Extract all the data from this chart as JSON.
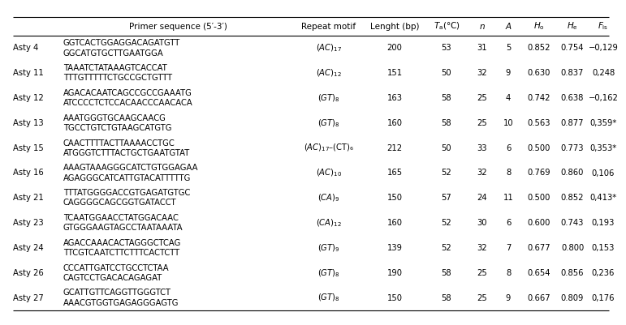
{
  "bg_color": "#ffffff",
  "font_size": 7.2,
  "header_font_size": 7.5,
  "rows": [
    {
      "locus": "Asty 4",
      "primer1": "GGTCACTGGAGGACAGATGTT",
      "primer2": "GGCATGTGCTTGAATGGA",
      "repeat": "(AC)",
      "repeat_sub": "17",
      "repeat_extra": "",
      "lenght": "200",
      "ta": "53",
      "n": "31",
      "a": "5",
      "ho": "0.852",
      "he": "0.754",
      "fis": "−0,129"
    },
    {
      "locus": "Asty 11",
      "primer1": "TAAATCTATAAAGTCACCAT",
      "primer2": "TTTGTTTTTCTGCCGCTGTTT",
      "repeat": "(AC)",
      "repeat_sub": "12",
      "repeat_extra": "",
      "lenght": "151",
      "ta": "50",
      "n": "32",
      "a": "9",
      "ho": "0.630",
      "he": "0.837",
      "fis": "0,248"
    },
    {
      "locus": "Asty 12",
      "primer1": "AGACACAATCAGCCGCCGAAATG",
      "primer2": "ATCCCCTCTCCACAACCCAACACA",
      "repeat": "(GT)",
      "repeat_sub": "8",
      "repeat_extra": "",
      "lenght": "163",
      "ta": "58",
      "n": "25",
      "a": "4",
      "ho": "0.742",
      "he": "0.638",
      "fis": "−0,162"
    },
    {
      "locus": "Asty 13",
      "primer1": "AAATGGGTGCAAGCAACG",
      "primer2": "TGCCTGTCTGTAAGCATGTG",
      "repeat": "(GT)",
      "repeat_sub": "8",
      "repeat_extra": "",
      "lenght": "160",
      "ta": "58",
      "n": "25",
      "a": "10",
      "ho": "0.563",
      "he": "0.877",
      "fis": "0,359*"
    },
    {
      "locus": "Asty 15",
      "primer1": "CAACTTTTACTTAAAACCTGC",
      "primer2": "ATGGGTCTTTACTGCTGAATGTAT",
      "repeat": "(AC)",
      "repeat_sub": "17",
      "repeat_extra": "–(CT)₆",
      "lenght": "212",
      "ta": "50",
      "n": "33",
      "a": "6",
      "ho": "0.500",
      "he": "0.773",
      "fis": "0,353*"
    },
    {
      "locus": "Asty 16",
      "primer1": "AAAGTAAAGGGCATCTGTGGAGAA",
      "primer2": "AGAGGGCATCATTGTACATTTTTG",
      "repeat": "(AC)",
      "repeat_sub": "10",
      "repeat_extra": "",
      "lenght": "165",
      "ta": "52",
      "n": "32",
      "a": "8",
      "ho": "0.769",
      "he": "0.860",
      "fis": "0,106"
    },
    {
      "locus": "Asty 21",
      "primer1": "TTTATGGGGACCGTGAGATGTGC",
      "primer2": "CAGGGGCAGCGGTGATACCT",
      "repeat": "(CA)",
      "repeat_sub": "9",
      "repeat_extra": "",
      "lenght": "150",
      "ta": "57",
      "n": "24",
      "a": "11",
      "ho": "0.500",
      "he": "0.852",
      "fis": "0,413*"
    },
    {
      "locus": "Asty 23",
      "primer1": "TCAATGGAACCTATGGACAAC",
      "primer2": "GTGGGAAGTAGCCTAATAAATA",
      "repeat": "(CA)",
      "repeat_sub": "12",
      "repeat_extra": "",
      "lenght": "160",
      "ta": "52",
      "n": "30",
      "a": "6",
      "ho": "0.600",
      "he": "0.743",
      "fis": "0,193"
    },
    {
      "locus": "Asty 24",
      "primer1": "AGACCAAACACTAGGGCTCAG",
      "primer2": "TTCGTCAATCTTCTTTCACTCTT",
      "repeat": "(GT)",
      "repeat_sub": "9",
      "repeat_extra": "",
      "lenght": "139",
      "ta": "52",
      "n": "32",
      "a": "7",
      "ho": "0.677",
      "he": "0.800",
      "fis": "0,153"
    },
    {
      "locus": "Asty 26",
      "primer1": "CCCATTGATCCTGCCTCTAA",
      "primer2": "CAGTCCTGACACAGAGAT",
      "repeat": "(GT)",
      "repeat_sub": "8",
      "repeat_extra": "",
      "lenght": "190",
      "ta": "58",
      "n": "25",
      "a": "8",
      "ho": "0.654",
      "he": "0.856",
      "fis": "0,236"
    },
    {
      "locus": "Asty 27",
      "primer1": "GCATTGTTCAGGTTGGGTCT",
      "primer2": "AAACGTGGTGAGAGGGAGTG",
      "repeat": "(GT)",
      "repeat_sub": "8",
      "repeat_extra": "",
      "lenght": "150",
      "ta": "58",
      "n": "25",
      "a": "9",
      "ho": "0.667",
      "he": "0.809",
      "fis": "0,176"
    }
  ]
}
